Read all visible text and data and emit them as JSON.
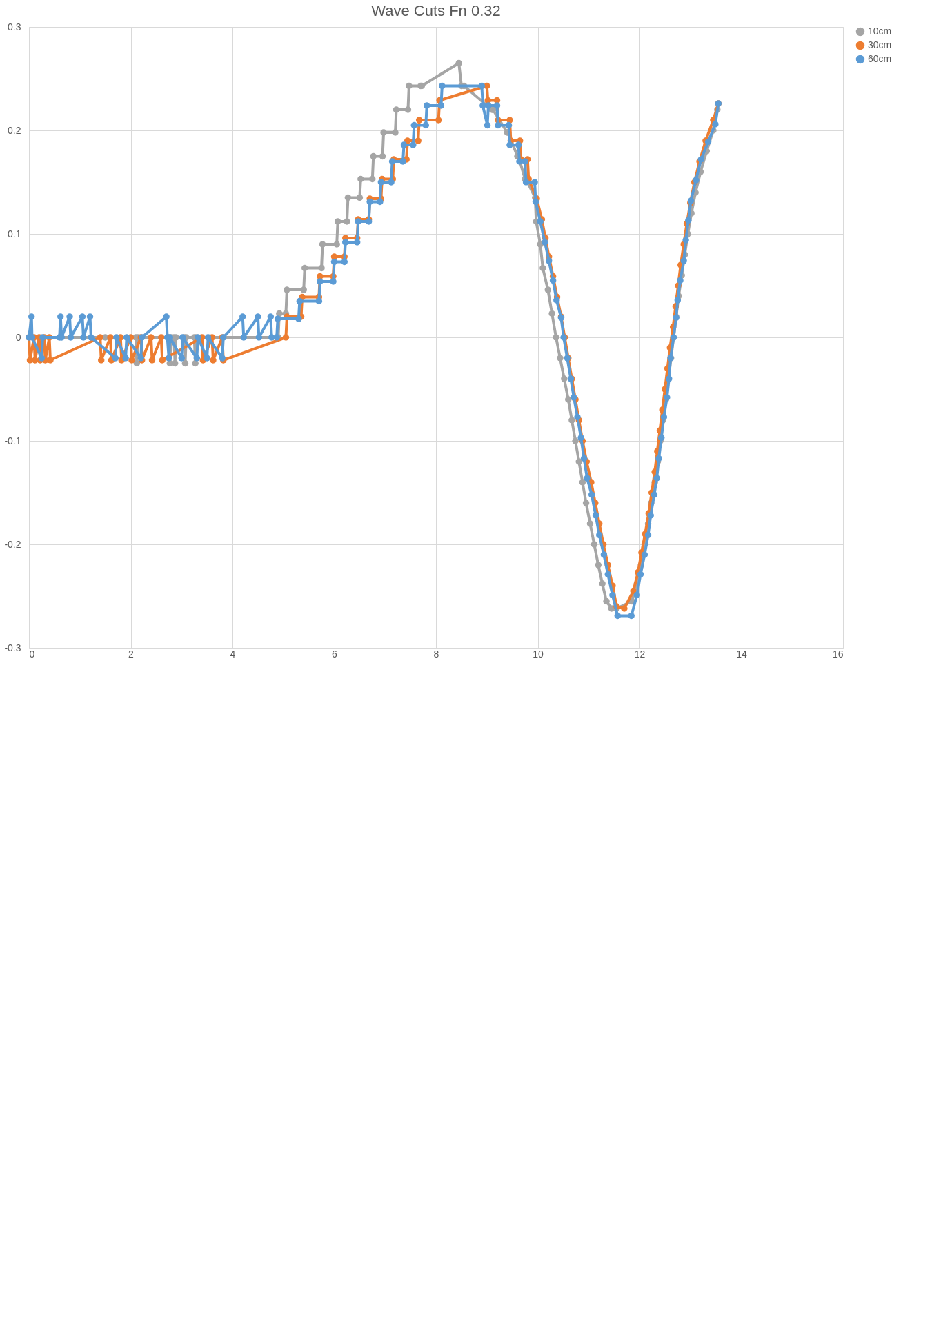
{
  "chart_data": {
    "type": "line",
    "title": "Wave Cuts Fn 0.32",
    "xlim": [
      0,
      16
    ],
    "xticks": [
      0,
      2,
      4,
      6,
      8,
      10,
      12,
      14,
      16
    ],
    "ylim": [
      -0.3,
      0.3
    ],
    "yticks": [
      -0.3,
      -0.2,
      -0.1,
      0,
      0.1,
      0.2,
      0.3
    ],
    "grid": true,
    "legend": "right",
    "marker": "circle",
    "line_style": "solid",
    "series": [
      {
        "name": "10cm",
        "color": "#a5a5a5",
        "x": [
          0,
          1.5,
          2.1,
          2.12,
          2.14,
          2.75,
          2.77,
          2.79,
          2.85,
          2.87,
          2.89,
          3.05,
          3.07,
          3.09,
          3.25,
          3.27,
          3.29,
          4.9,
          4.92,
          5.05,
          5.07,
          5.4,
          5.42,
          5.75,
          5.77,
          6.05,
          6.07,
          6.25,
          6.27,
          6.5,
          6.52,
          6.75,
          6.77,
          6.95,
          6.97,
          7.2,
          7.22,
          7.45,
          7.47,
          7.7,
          7.72,
          8.45,
          8.5,
          8.55,
          9.1,
          9.12,
          9.4,
          9.42,
          9.6,
          9.62,
          9.75,
          9.77,
          9.95,
          9.97,
          10.05,
          10.1,
          10.2,
          10.28,
          10.36,
          10.44,
          10.52,
          10.6,
          10.67,
          10.74,
          10.81,
          10.88,
          10.95,
          11.03,
          11.11,
          11.19,
          11.27,
          11.35,
          11.45,
          11.55,
          11.85,
          11.95,
          12.03,
          12.1,
          12.17,
          12.23,
          12.3,
          12.36,
          12.41,
          12.46,
          12.52,
          12.57,
          12.62,
          12.67,
          12.72,
          12.77,
          12.83,
          12.89,
          12.95,
          13.02,
          13.1,
          13.2,
          13.32,
          13.45,
          13.53
        ],
        "values": [
          0,
          0,
          0,
          -0.025,
          0,
          0,
          -0.025,
          0,
          0,
          -0.025,
          0,
          0,
          -0.025,
          0,
          0,
          -0.025,
          0,
          0,
          0.023,
          0.023,
          0.046,
          0.046,
          0.067,
          0.067,
          0.09,
          0.09,
          0.112,
          0.112,
          0.135,
          0.135,
          0.153,
          0.153,
          0.175,
          0.175,
          0.198,
          0.198,
          0.22,
          0.22,
          0.243,
          0.243,
          0.243,
          0.265,
          0.243,
          0.243,
          0.22,
          0.22,
          0.198,
          0.198,
          0.175,
          0.175,
          0.153,
          0.153,
          0.135,
          0.112,
          0.09,
          0.067,
          0.046,
          0.023,
          0,
          -0.02,
          -0.04,
          -0.06,
          -0.08,
          -0.1,
          -0.12,
          -0.14,
          -0.16,
          -0.18,
          -0.2,
          -0.22,
          -0.238,
          -0.255,
          -0.262,
          -0.262,
          -0.255,
          -0.238,
          -0.22,
          -0.2,
          -0.18,
          -0.16,
          -0.14,
          -0.12,
          -0.1,
          -0.08,
          -0.06,
          -0.04,
          -0.02,
          0,
          0.02,
          0.04,
          0.06,
          0.08,
          0.1,
          0.12,
          0.14,
          0.16,
          0.18,
          0.2,
          0.22
        ]
      },
      {
        "name": "30cm",
        "color": "#ed7d31",
        "x": [
          0,
          0.02,
          0.1,
          0.12,
          0.2,
          0.22,
          0.3,
          0.32,
          0.4,
          0.42,
          1.4,
          1.42,
          1.6,
          1.62,
          1.8,
          1.82,
          2.0,
          2.02,
          2.2,
          2.22,
          2.4,
          2.42,
          2.6,
          2.62,
          3.4,
          3.42,
          3.6,
          3.62,
          3.8,
          3.82,
          5.05,
          5.07,
          5.35,
          5.37,
          5.7,
          5.72,
          5.98,
          6.0,
          6.2,
          6.22,
          6.45,
          6.47,
          6.68,
          6.7,
          6.92,
          6.94,
          7.15,
          7.17,
          7.42,
          7.44,
          7.65,
          7.67,
          8.05,
          8.07,
          9.0,
          9.02,
          9.2,
          9.22,
          9.45,
          9.47,
          9.65,
          9.67,
          9.8,
          9.82,
          9.98,
          10.08,
          10.15,
          10.22,
          10.3,
          10.38,
          10.46,
          10.53,
          10.6,
          10.67,
          10.74,
          10.81,
          10.88,
          10.96,
          11.05,
          11.13,
          11.21,
          11.29,
          11.38,
          11.47,
          11.55,
          11.7,
          11.88,
          11.97,
          12.04,
          12.11,
          12.18,
          12.24,
          12.3,
          12.35,
          12.4,
          12.45,
          12.5,
          12.55,
          12.6,
          12.66,
          12.71,
          12.76,
          12.81,
          12.87,
          12.93,
          13.0,
          13.08,
          13.18,
          13.3,
          13.45,
          13.55
        ],
        "values": [
          0,
          -0.022,
          0,
          -0.022,
          0,
          -0.022,
          0,
          -0.022,
          0,
          -0.022,
          0,
          -0.022,
          0,
          -0.022,
          0,
          -0.022,
          0,
          -0.022,
          0,
          -0.022,
          0,
          -0.022,
          0,
          -0.022,
          0,
          -0.022,
          0,
          -0.022,
          0,
          -0.022,
          0,
          0.02,
          0.02,
          0.039,
          0.039,
          0.059,
          0.059,
          0.078,
          0.078,
          0.096,
          0.096,
          0.114,
          0.114,
          0.134,
          0.134,
          0.153,
          0.153,
          0.172,
          0.172,
          0.19,
          0.19,
          0.21,
          0.21,
          0.229,
          0.243,
          0.229,
          0.229,
          0.21,
          0.21,
          0.19,
          0.19,
          0.172,
          0.172,
          0.153,
          0.134,
          0.114,
          0.096,
          0.078,
          0.059,
          0.039,
          0.02,
          0,
          -0.02,
          -0.04,
          -0.06,
          -0.08,
          -0.1,
          -0.12,
          -0.14,
          -0.16,
          -0.18,
          -0.2,
          -0.22,
          -0.24,
          -0.26,
          -0.262,
          -0.245,
          -0.227,
          -0.208,
          -0.19,
          -0.17,
          -0.15,
          -0.13,
          -0.11,
          -0.09,
          -0.07,
          -0.05,
          -0.03,
          -0.01,
          0.01,
          0.03,
          0.05,
          0.07,
          0.09,
          0.11,
          0.13,
          0.15,
          0.17,
          0.19,
          0.21,
          0.226
        ]
      },
      {
        "name": "60cm",
        "color": "#5b9bd5",
        "x": [
          0,
          0.05,
          0.06,
          0.25,
          0.27,
          0.6,
          0.62,
          0.64,
          0.8,
          0.82,
          1.05,
          1.07,
          1.2,
          1.22,
          1.7,
          1.72,
          1.9,
          1.92,
          2.2,
          2.22,
          2.7,
          2.72,
          2.75,
          2.77,
          3.0,
          3.02,
          3.3,
          3.32,
          3.5,
          3.52,
          3.8,
          3.82,
          4.2,
          4.22,
          4.5,
          4.52,
          4.75,
          4.77,
          4.87,
          4.89,
          5.3,
          5.32,
          5.7,
          5.72,
          5.98,
          6.0,
          6.2,
          6.22,
          6.45,
          6.47,
          6.68,
          6.7,
          6.9,
          6.92,
          7.12,
          7.14,
          7.35,
          7.37,
          7.55,
          7.57,
          7.8,
          7.82,
          8.1,
          8.12,
          8.9,
          8.92,
          9.01,
          9.03,
          9.2,
          9.22,
          9.43,
          9.45,
          9.62,
          9.64,
          9.75,
          9.77,
          9.94,
          9.96,
          10.05,
          10.14,
          10.22,
          10.3,
          10.37,
          10.46,
          10.51,
          10.58,
          10.65,
          10.71,
          10.78,
          10.85,
          10.91,
          10.97,
          11.06,
          11.14,
          11.21,
          11.3,
          11.38,
          11.47,
          11.57,
          11.84,
          11.95,
          12.02,
          12.1,
          12.17,
          12.22,
          12.29,
          12.34,
          12.38,
          12.43,
          12.48,
          12.54,
          12.58,
          12.61,
          12.67,
          12.72,
          12.75,
          12.8,
          12.87,
          12.91,
          12.96,
          13.01,
          13.11,
          13.21,
          13.35,
          13.49,
          13.55
        ],
        "values": [
          0,
          0.02,
          0,
          -0.02,
          0,
          0,
          0.02,
          0,
          0.02,
          0,
          0.02,
          0,
          0.02,
          0,
          -0.02,
          0,
          -0.02,
          0,
          -0.02,
          0,
          0.02,
          0,
          -0.02,
          0,
          -0.02,
          0,
          -0.02,
          0,
          -0.02,
          0,
          -0.02,
          0,
          0.02,
          0,
          0.02,
          0,
          0.02,
          0,
          0,
          0.018,
          0.018,
          0.035,
          0.035,
          0.054,
          0.054,
          0.073,
          0.073,
          0.092,
          0.092,
          0.112,
          0.112,
          0.131,
          0.131,
          0.15,
          0.15,
          0.17,
          0.17,
          0.186,
          0.186,
          0.205,
          0.205,
          0.224,
          0.224,
          0.243,
          0.243,
          0.224,
          0.205,
          0.224,
          0.224,
          0.205,
          0.205,
          0.186,
          0.186,
          0.17,
          0.17,
          0.15,
          0.15,
          0.131,
          0.112,
          0.092,
          0.074,
          0.055,
          0.036,
          0.019,
          0,
          -0.02,
          -0.04,
          -0.058,
          -0.077,
          -0.097,
          -0.117,
          -0.136,
          -0.152,
          -0.172,
          -0.191,
          -0.21,
          -0.229,
          -0.249,
          -0.269,
          -0.269,
          -0.249,
          -0.229,
          -0.21,
          -0.191,
          -0.172,
          -0.152,
          -0.136,
          -0.117,
          -0.097,
          -0.077,
          -0.058,
          -0.04,
          -0.02,
          0,
          0.019,
          0.036,
          0.055,
          0.074,
          0.094,
          0.113,
          0.132,
          0.152,
          0.172,
          0.189,
          0.206,
          0.226
        ]
      }
    ]
  }
}
